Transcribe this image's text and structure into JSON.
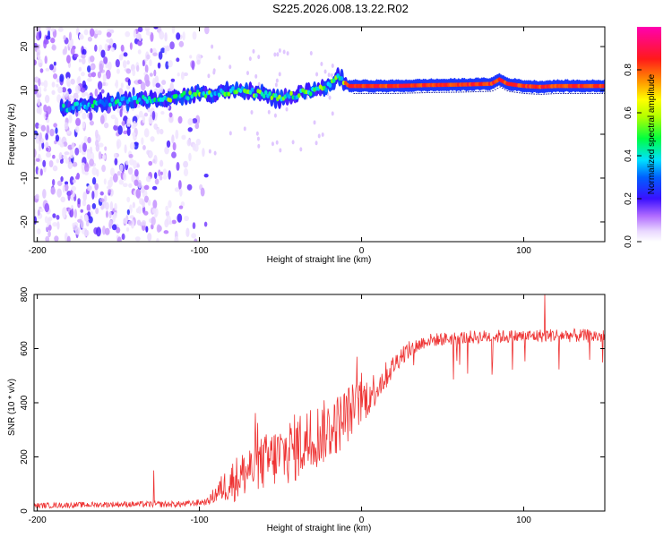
{
  "title": "S225.2026.008.13.22.R02",
  "chart_data": [
    {
      "type": "heatmap",
      "xlabel": "Height of straight line (km)",
      "ylabel": "Frequency (Hz)",
      "xlim": [
        -202,
        150
      ],
      "ylim": [
        -24.5,
        24.5
      ],
      "x_ticks": [
        -200,
        -100,
        0,
        100
      ],
      "x_tick_labels": [
        "-200",
        "-100",
        "0",
        "100"
      ],
      "y_ticks": [
        -20,
        -10,
        0,
        10,
        20
      ],
      "y_tick_labels": [
        "-20",
        "-10",
        "0",
        "10",
        "20"
      ],
      "ridge": {
        "x": [
          -180,
          -165,
          -150,
          -135,
          -120,
          -105,
          -90,
          -75,
          -60,
          -50,
          -40,
          -30,
          -20,
          -15,
          -12,
          -8,
          0,
          20,
          40,
          60,
          80,
          85,
          90,
          100,
          110,
          120,
          150
        ],
        "y": [
          6,
          7,
          7.5,
          7.8,
          8,
          9,
          9.5,
          10,
          9,
          8,
          9,
          10,
          11,
          13,
          12.5,
          11,
          11,
          11,
          11.2,
          11.3,
          11.5,
          12.5,
          11.5,
          11,
          10.8,
          11,
          11
        ]
      },
      "scatter_region": {
        "x_range": [
          -202,
          -95
        ],
        "y_range": [
          -24.5,
          24.5
        ]
      }
    },
    {
      "type": "line",
      "xlabel": "Height of straight line (km)",
      "ylabel": "SNR (10 * v/v)",
      "xlim": [
        -202,
        150
      ],
      "ylim": [
        0,
        800
      ],
      "x_ticks": [
        -200,
        -100,
        0,
        100
      ],
      "x_tick_labels": [
        "-200",
        "-100",
        "0",
        "100"
      ],
      "y_ticks": [
        0,
        200,
        400,
        600,
        800
      ],
      "y_tick_labels": [
        "0",
        "200",
        "400",
        "600",
        "800"
      ],
      "color": "#ee3333",
      "profile": {
        "x": [
          -202,
          -150,
          -110,
          -95,
          -85,
          -75,
          -60,
          -45,
          -30,
          -15,
          -5,
          5,
          15,
          25,
          40,
          60,
          80,
          100,
          120,
          150
        ],
        "y": [
          20,
          25,
          25,
          35,
          90,
          130,
          180,
          220,
          270,
          320,
          380,
          430,
          500,
          580,
          630,
          640,
          645,
          645,
          650,
          645
        ]
      },
      "noise": {
        "x": [
          -202,
          -95,
          -80,
          -40,
          -10,
          20,
          40,
          150
        ],
        "amp": [
          10,
          12,
          80,
          130,
          110,
          40,
          25,
          25
        ]
      },
      "spikes": [
        {
          "x": 113,
          "y": 800
        },
        {
          "x": -128,
          "y": 150
        },
        {
          "x": -3,
          "y": 570
        }
      ]
    }
  ],
  "colorbar": {
    "label": "Normalized spectral amplitude",
    "range": [
      0,
      1
    ],
    "ticks": [
      0.0,
      0.2,
      0.4,
      0.6,
      0.8
    ],
    "tick_labels": [
      "0.0",
      "0.2",
      "0.4",
      "0.6",
      "0.8"
    ],
    "stops": [
      {
        "v": 0.0,
        "color": "#ffffff"
      },
      {
        "v": 0.05,
        "color": "#e8d6ff"
      },
      {
        "v": 0.12,
        "color": "#b06bff"
      },
      {
        "v": 0.2,
        "color": "#3a10ff"
      },
      {
        "v": 0.3,
        "color": "#0060ff"
      },
      {
        "v": 0.38,
        "color": "#00e0ff"
      },
      {
        "v": 0.48,
        "color": "#00ff40"
      },
      {
        "v": 0.58,
        "color": "#b0ff00"
      },
      {
        "v": 0.66,
        "color": "#ffff00"
      },
      {
        "v": 0.75,
        "color": "#ff9000"
      },
      {
        "v": 0.85,
        "color": "#ff1a1a"
      },
      {
        "v": 1.0,
        "color": "#ff00b0"
      }
    ]
  }
}
